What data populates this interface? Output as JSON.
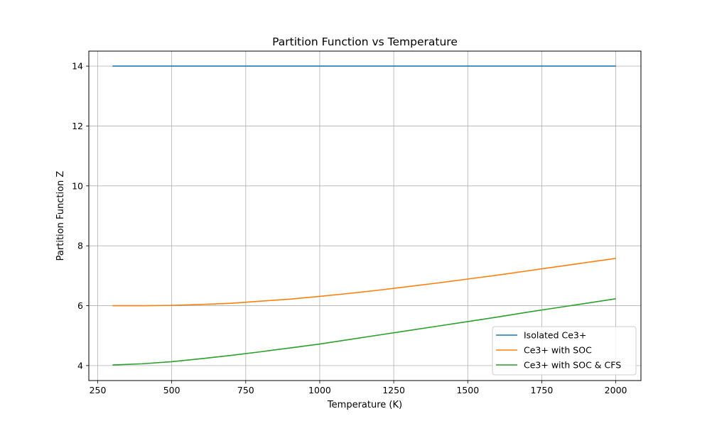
{
  "chart_data": {
    "type": "line",
    "title": "Partition Function vs Temperature",
    "xlabel": "Temperature (K)",
    "ylabel": "Partition Function Z",
    "xlim": [
      220,
      2085
    ],
    "ylim": [
      3.5,
      14.5
    ],
    "xticks": [
      250,
      500,
      750,
      1000,
      1250,
      1500,
      1750,
      2000
    ],
    "yticks": [
      4,
      6,
      8,
      10,
      12,
      14
    ],
    "grid": true,
    "legend_position": "lower-right",
    "x": [
      300,
      400,
      500,
      600,
      700,
      800,
      900,
      1000,
      1100,
      1200,
      1300,
      1400,
      1500,
      1600,
      1700,
      1800,
      1900,
      2000
    ],
    "series": [
      {
        "name": "Isolated Ce3+",
        "color": "#1f77b4",
        "values": [
          14,
          14,
          14,
          14,
          14,
          14,
          14,
          14,
          14,
          14,
          14,
          14,
          14,
          14,
          14,
          14,
          14,
          14
        ]
      },
      {
        "name": "Ce3+ with SOC",
        "color": "#ff7f0e",
        "values": [
          6.0,
          6.0,
          6.01,
          6.04,
          6.08,
          6.15,
          6.22,
          6.31,
          6.41,
          6.52,
          6.64,
          6.76,
          6.89,
          7.02,
          7.16,
          7.3,
          7.44,
          7.58
        ]
      },
      {
        "name": "Ce3+ with SOC & CFS",
        "color": "#2ca02c",
        "values": [
          4.02,
          4.06,
          4.13,
          4.23,
          4.34,
          4.46,
          4.59,
          4.72,
          4.87,
          5.02,
          5.17,
          5.32,
          5.47,
          5.62,
          5.78,
          5.93,
          6.08,
          6.23
        ]
      }
    ]
  }
}
